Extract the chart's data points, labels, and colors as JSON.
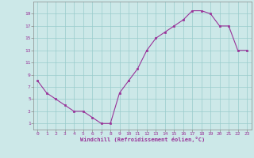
{
  "x": [
    0,
    1,
    2,
    3,
    4,
    5,
    6,
    7,
    8,
    9,
    10,
    11,
    12,
    13,
    14,
    15,
    16,
    17,
    18,
    19,
    20,
    21,
    22,
    23
  ],
  "y": [
    8,
    6,
    5,
    4,
    3,
    3,
    2,
    1,
    1,
    6,
    8,
    10,
    13,
    15,
    16,
    17,
    18,
    19.5,
    19.5,
    19,
    17,
    17,
    13,
    13
  ],
  "line_color": "#993399",
  "marker_color": "#993399",
  "bg_color": "#cce8e8",
  "grid_color": "#99cccc",
  "xlabel": "Windchill (Refroidissement éolien,°C)",
  "xlim": [
    -0.5,
    23.5
  ],
  "ylim": [
    0,
    21
  ],
  "xticks": [
    0,
    1,
    2,
    3,
    4,
    5,
    6,
    7,
    8,
    9,
    10,
    11,
    12,
    13,
    14,
    15,
    16,
    17,
    18,
    19,
    20,
    21,
    22,
    23
  ],
  "yticks": [
    1,
    3,
    5,
    7,
    9,
    11,
    13,
    15,
    17,
    19
  ],
  "tick_color": "#993399",
  "label_color": "#993399",
  "axis_color": "#888888",
  "tick_fontsize": 4.5,
  "xlabel_fontsize": 5.0
}
